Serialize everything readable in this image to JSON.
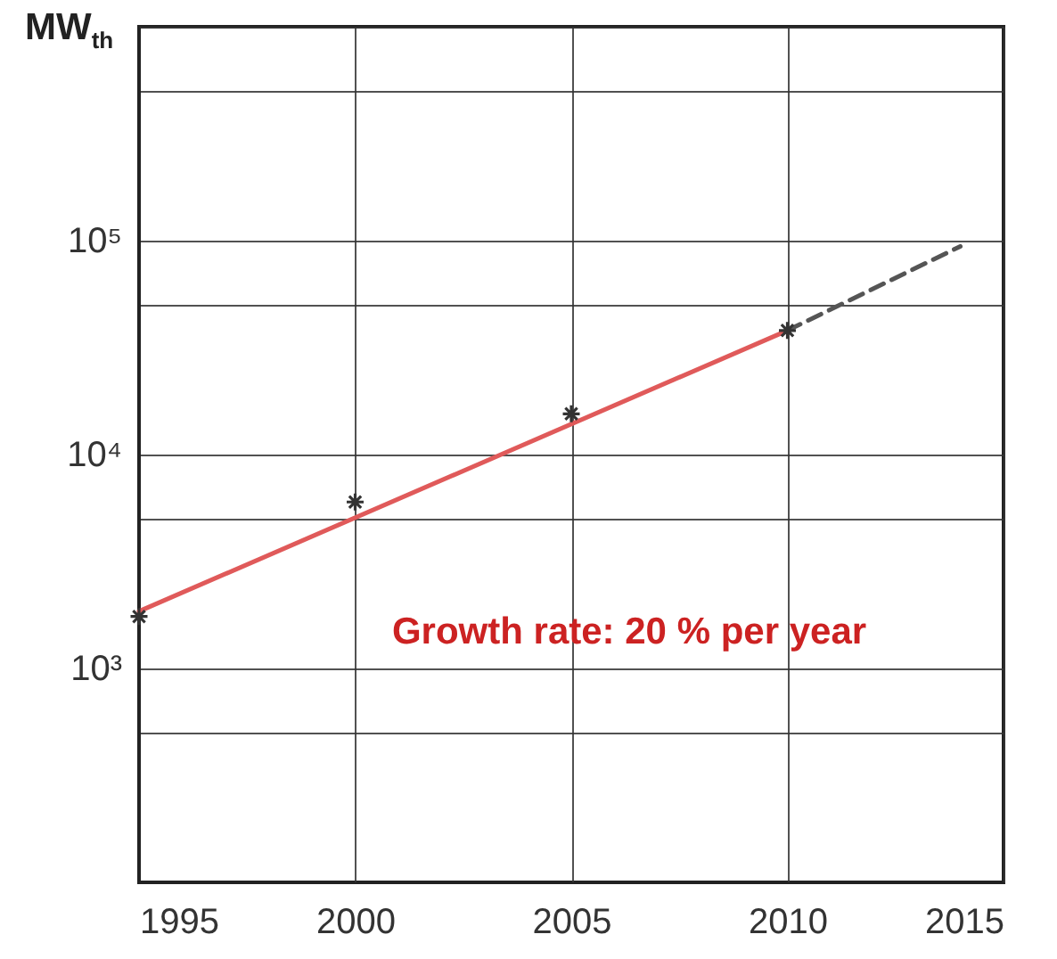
{
  "chart_data": {
    "type": "scatter",
    "ylabel": "MW$_{th}$",
    "log": "y",
    "grid": true,
    "xlim": [
      1995,
      2015
    ],
    "xticks": [
      1995,
      2000,
      2005,
      2010,
      2015
    ],
    "ylim": [
      100,
      1000000
    ],
    "yticks": [
      {
        "value": 100,
        "label": null
      },
      {
        "value": 500,
        "label": null
      },
      {
        "value": 1000,
        "label": "10³"
      },
      {
        "value": 5000,
        "label": null
      },
      {
        "value": 10000,
        "label": "10⁴"
      },
      {
        "value": 50000,
        "label": null
      },
      {
        "value": 100000,
        "label": "10⁵"
      },
      {
        "value": 500000,
        "label": null
      },
      {
        "value": 1000000,
        "label": null
      }
    ],
    "series": [
      {
        "type": "line",
        "color": "#e05a5a",
        "marker": "none",
        "line_style": "solid",
        "x": [
          1995,
          2010
        ],
        "values": [
          1850,
          38000
        ]
      },
      {
        "type": "line",
        "color": "#555555",
        "marker": "none",
        "line_style": "dashed",
        "x": [
          2010,
          2014
        ],
        "values": [
          38000,
          94000
        ]
      },
      {
        "color": "#333333",
        "marker": "cross",
        "x": [
          1995,
          2000,
          2005,
          2010
        ],
        "values": [
          1750,
          6000,
          15500,
          38000
        ]
      }
    ],
    "annotations": [
      "Growth rate: 20 % per year"
    ]
  }
}
